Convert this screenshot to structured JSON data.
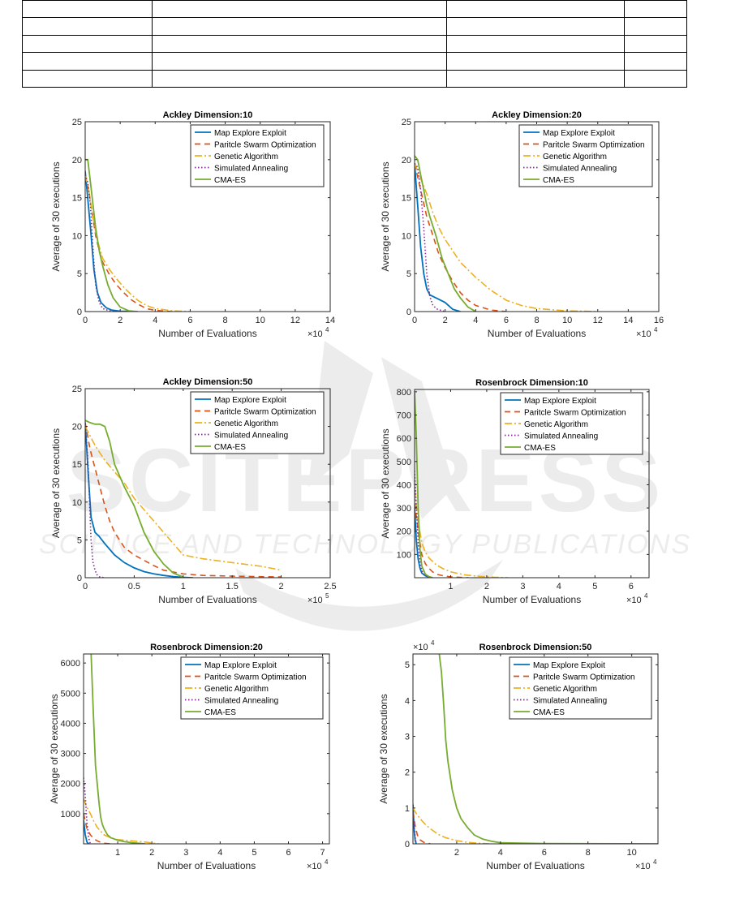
{
  "watermark": {
    "main": "SCITEPRESS",
    "sub": "SCIENCE AND TECHNOLOGY PUBLICATIONS"
  },
  "table": {
    "rows": 5,
    "cols": 4
  },
  "legend": [
    "Map Explore Exploit",
    "Paritcle Swarm Optimization",
    "Genetic Algorithm",
    "Simulated Annealing",
    "CMA-ES"
  ],
  "series_colors": [
    "#0072BD",
    "#D95319",
    "#EDB120",
    "#7E2F8E",
    "#77AC30"
  ],
  "charts": [
    {
      "title": "Ackley Dimension:10",
      "xlabel": "Number of Evaluations",
      "ylabel": "Average of 30 executions",
      "xticks": [
        "0",
        "2",
        "4",
        "6",
        "8",
        "10",
        "12",
        "14"
      ],
      "yticks": [
        "0",
        "5",
        "10",
        "15",
        "20",
        "25"
      ],
      "xexp": "×10",
      "xexpsup": "4",
      "yexp": "",
      "yexpsup": ""
    },
    {
      "title": "Ackley Dimension:20",
      "xlabel": "Number of Evaluations",
      "ylabel": "Average of 30 executions",
      "xticks": [
        "0",
        "2",
        "4",
        "6",
        "8",
        "10",
        "12",
        "14",
        "16"
      ],
      "yticks": [
        "0",
        "5",
        "10",
        "15",
        "20",
        "25"
      ],
      "xexp": "×10",
      "xexpsup": "4",
      "yexp": "",
      "yexpsup": ""
    },
    {
      "title": "Ackley Dimension:50",
      "xlabel": "Number of Evaluations",
      "ylabel": "Average of 30 executions",
      "xticks": [
        "0",
        "0.5",
        "1",
        "1.5",
        "2",
        "2.5"
      ],
      "yticks": [
        "0",
        "5",
        "10",
        "15",
        "20",
        "25"
      ],
      "xexp": "×10",
      "xexpsup": "5",
      "yexp": "",
      "yexpsup": ""
    },
    {
      "title": "Rosenbrock Dimension:10",
      "xlabel": "Number of Evaluations",
      "ylabel": "Average of 30 executions",
      "xticks": [
        "1",
        "2",
        "3",
        "4",
        "5",
        "6"
      ],
      "yticks": [
        "100",
        "200",
        "300",
        "400",
        "500",
        "600",
        "700",
        "800"
      ],
      "xexp": "×10",
      "xexpsup": "4",
      "yexp": "",
      "yexpsup": ""
    },
    {
      "title": "Rosenbrock Dimension:20",
      "xlabel": "Number of Evaluations",
      "ylabel": "Average of 30 executions",
      "xticks": [
        "1",
        "2",
        "3",
        "4",
        "5",
        "6",
        "7"
      ],
      "yticks": [
        "1000",
        "2000",
        "3000",
        "4000",
        "5000",
        "6000"
      ],
      "xexp": "×10",
      "xexpsup": "4",
      "yexp": "",
      "yexpsup": ""
    },
    {
      "title": "Rosenbrock Dimension:50",
      "xlabel": "Number of Evaluations",
      "ylabel": "Average of 30 executions",
      "xticks": [
        "2",
        "4",
        "6",
        "8",
        "10"
      ],
      "yticks": [
        "0",
        "1",
        "2",
        "3",
        "4",
        "5"
      ],
      "xexp": "×10",
      "xexpsup": "4",
      "yexp": "×10",
      "yexpsup": "4"
    }
  ],
  "chart_data": [
    {
      "type": "line",
      "title": "Ackley Dimension:10",
      "xlabel": "Number of Evaluations",
      "ylabel": "Average of 30 executions",
      "xlim": [
        0,
        140000
      ],
      "ylim": [
        0,
        25
      ],
      "grid": false,
      "legend_position": "top-right",
      "series": [
        {
          "name": "Map Explore Exploit",
          "x": [
            0,
            1000,
            3000,
            5000,
            7000,
            9000,
            12000,
            15000,
            20000,
            30000
          ],
          "y": [
            18.5,
            16,
            11,
            5.5,
            2.5,
            1.2,
            0.5,
            0.2,
            0.05,
            0
          ]
        },
        {
          "name": "Paritcle Swarm Optimization",
          "x": [
            0,
            2000,
            4000,
            6000,
            8000,
            10000,
            14000,
            18000,
            22000,
            26000,
            30000,
            35000,
            40000,
            50000
          ],
          "y": [
            18,
            16,
            13,
            10,
            8,
            6.5,
            4.8,
            3.5,
            2.5,
            1.6,
            1,
            0.4,
            0.15,
            0
          ]
        },
        {
          "name": "Genetic Algorithm",
          "x": [
            0,
            2000,
            4000,
            6000,
            8000,
            10000,
            14000,
            18000,
            22000,
            26000,
            30000,
            35000,
            40000,
            50000,
            60000
          ],
          "y": [
            18,
            16,
            13,
            10.5,
            8.5,
            7,
            5.5,
            4.3,
            3.2,
            2.3,
            1.5,
            0.8,
            0.4,
            0.1,
            0
          ]
        },
        {
          "name": "Simulated Annealing",
          "x": [
            0,
            1500,
            3000,
            4500,
            6000,
            8000,
            10000,
            14000,
            20000
          ],
          "y": [
            18,
            17,
            14,
            8,
            3.5,
            1.2,
            0.4,
            0.1,
            0
          ]
        },
        {
          "name": "CMA-ES",
          "x": [
            0,
            1500,
            3000,
            4500,
            6000,
            8000,
            10000,
            13000,
            16000,
            20000,
            25000,
            30000
          ],
          "y": [
            20,
            20,
            17,
            14,
            11,
            8,
            6,
            3.5,
            1.8,
            0.6,
            0.1,
            0
          ]
        }
      ]
    },
    {
      "type": "line",
      "title": "Ackley Dimension:20",
      "xlabel": "Number of Evaluations",
      "ylabel": "Average of 30 executions",
      "xlim": [
        0,
        160000
      ],
      "ylim": [
        0,
        25
      ],
      "grid": false,
      "legend_position": "top-right",
      "series": [
        {
          "name": "Map Explore Exploit",
          "x": [
            0,
            2000,
            4000,
            6000,
            8000,
            10000,
            12000,
            15000,
            20000,
            25000,
            30000
          ],
          "y": [
            19.5,
            14,
            8.5,
            5,
            3,
            2.2,
            2,
            1.7,
            1.2,
            0.3,
            0
          ]
        },
        {
          "name": "Paritcle Swarm Optimization",
          "x": [
            0,
            4000,
            8000,
            12000,
            16000,
            20000,
            25000,
            30000,
            35000,
            40000,
            50000,
            60000
          ],
          "y": [
            19.5,
            16,
            12.5,
            10,
            7.5,
            5.8,
            4,
            2.5,
            1.5,
            0.8,
            0.2,
            0
          ]
        },
        {
          "name": "Genetic Algorithm",
          "x": [
            0,
            4000,
            8000,
            12000,
            16000,
            20000,
            25000,
            30000,
            40000,
            50000,
            60000,
            70000,
            80000,
            100000,
            120000
          ],
          "y": [
            19.5,
            17.5,
            15.5,
            13,
            11,
            9.5,
            8,
            6.5,
            4.5,
            2.8,
            1.5,
            0.8,
            0.4,
            0.1,
            0
          ]
        },
        {
          "name": "Simulated Annealing",
          "x": [
            0,
            2000,
            4000,
            6000,
            8000,
            10000,
            12000,
            15000,
            20000
          ],
          "y": [
            19.5,
            19,
            16,
            11,
            5,
            2,
            0.8,
            0.3,
            0
          ]
        },
        {
          "name": "CMA-ES",
          "x": [
            0,
            2000,
            4000,
            6000,
            8000,
            10000,
            14000,
            18000,
            22000,
            26000,
            30000,
            35000,
            40000
          ],
          "y": [
            20.5,
            20,
            18,
            16,
            14,
            12.5,
            10,
            7,
            5,
            3,
            1.8,
            0.6,
            0
          ]
        }
      ]
    },
    {
      "type": "line",
      "title": "Ackley Dimension:50",
      "xlabel": "Number of Evaluations",
      "ylabel": "Average of 30 executions",
      "xlim": [
        0,
        250000
      ],
      "ylim": [
        0,
        25
      ],
      "grid": false,
      "legend_position": "top-right",
      "series": [
        {
          "name": "Map Explore Exploit",
          "x": [
            0,
            3000,
            6000,
            10000,
            14000,
            20000,
            30000,
            40000,
            50000,
            60000,
            70000,
            80000,
            90000,
            100000,
            110000
          ],
          "y": [
            20.5,
            14,
            8,
            6,
            5.5,
            4.5,
            3,
            2,
            1.3,
            0.8,
            0.5,
            0.3,
            0.15,
            0.05,
            0
          ]
        },
        {
          "name": "Paritcle Swarm Optimization",
          "x": [
            0,
            5000,
            10000,
            15000,
            20000,
            25000,
            30000,
            40000,
            50000,
            60000,
            70000,
            80000,
            100000,
            120000,
            150000,
            200000
          ],
          "y": [
            20.5,
            17,
            14.5,
            12,
            9.5,
            7.5,
            6,
            4,
            3,
            2.3,
            1.6,
            1,
            0.5,
            0.3,
            0.2,
            0.1
          ]
        },
        {
          "name": "Genetic Algorithm",
          "x": [
            0,
            10000,
            20000,
            30000,
            40000,
            50000,
            60000,
            70000,
            80000,
            90000,
            100000,
            120000,
            150000,
            180000,
            200000
          ],
          "y": [
            20,
            17.5,
            15.5,
            14,
            12.5,
            10.5,
            9,
            7.5,
            6,
            4.5,
            3,
            2.5,
            2,
            1.5,
            1
          ]
        },
        {
          "name": "Simulated Annealing",
          "x": [
            0,
            3000,
            6000,
            8000,
            10000,
            12000,
            15000,
            20000
          ],
          "y": [
            20.5,
            15,
            5,
            2,
            1,
            0.4,
            0.1,
            0
          ]
        },
        {
          "name": "CMA-ES",
          "x": [
            0,
            5000,
            10000,
            15000,
            20000,
            25000,
            30000,
            40000,
            50000,
            60000,
            70000,
            80000,
            90000,
            100000
          ],
          "y": [
            20.8,
            20.5,
            20.3,
            20.3,
            20,
            18,
            15,
            12,
            9.5,
            6,
            3.5,
            1.8,
            0.6,
            0.1
          ]
        }
      ]
    },
    {
      "type": "line",
      "title": "Rosenbrock Dimension:10",
      "xlabel": "Number of Evaluations",
      "ylabel": "Average of 30 executions",
      "xlim": [
        0,
        65000
      ],
      "ylim": [
        0,
        810
      ],
      "grid": false,
      "legend_position": "top-right",
      "series": [
        {
          "name": "Map Explore Exploit",
          "x": [
            0,
            500,
            1000,
            1500,
            2000,
            3000,
            4000,
            5000
          ],
          "y": [
            300,
            160,
            80,
            40,
            20,
            8,
            3,
            0
          ]
        },
        {
          "name": "Paritcle Swarm Optimization",
          "x": [
            0,
            1000,
            2000,
            3000,
            4000,
            5000,
            6000,
            8000,
            10000,
            12000,
            15000
          ],
          "y": [
            320,
            200,
            100,
            60,
            40,
            25,
            15,
            8,
            4,
            2,
            0
          ]
        },
        {
          "name": "Genetic Algorithm",
          "x": [
            0,
            1000,
            2000,
            3000,
            4000,
            6000,
            8000,
            10000,
            14000,
            18000,
            22000,
            26000
          ],
          "y": [
            380,
            240,
            150,
            110,
            85,
            55,
            38,
            25,
            12,
            6,
            2,
            0
          ]
        },
        {
          "name": "Simulated Annealing",
          "x": [
            0,
            500,
            1000,
            1500,
            2000,
            3000,
            4000
          ],
          "y": [
            460,
            300,
            150,
            70,
            30,
            10,
            0
          ]
        },
        {
          "name": "CMA-ES",
          "x": [
            0,
            500,
            1000,
            1500,
            2000,
            3000,
            4000,
            5000
          ],
          "y": [
            800,
            600,
            300,
            120,
            50,
            15,
            5,
            0
          ]
        }
      ]
    },
    {
      "type": "line",
      "title": "Rosenbrock Dimension:20",
      "xlabel": "Number of Evaluations",
      "ylabel": "Average of 30 executions",
      "xlim": [
        0,
        72000
      ],
      "ylim": [
        0,
        6300
      ],
      "grid": false,
      "legend_position": "top-right",
      "series": [
        {
          "name": "Map Explore Exploit",
          "x": [
            0,
            500,
            1000,
            1500
          ],
          "y": [
            800,
            300,
            60,
            0
          ]
        },
        {
          "name": "Paritcle Swarm Optimization",
          "x": [
            0,
            1000,
            2000,
            3000,
            4000,
            5000,
            6000,
            8000
          ],
          "y": [
            1000,
            500,
            300,
            170,
            100,
            50,
            20,
            0
          ]
        },
        {
          "name": "Genetic Algorithm",
          "x": [
            0,
            1000,
            2000,
            3000,
            4000,
            5000,
            6000,
            8000,
            10000,
            14000,
            18000,
            22000
          ],
          "y": [
            1500,
            1200,
            1000,
            750,
            550,
            420,
            300,
            200,
            140,
            100,
            60,
            0
          ]
        },
        {
          "name": "Simulated Annealing",
          "x": [
            0,
            500,
            1000,
            1500,
            2000
          ],
          "y": [
            2200,
            1600,
            700,
            200,
            0
          ]
        },
        {
          "name": "CMA-ES",
          "x": [
            2200,
            2800,
            3500,
            4000,
            4500,
            5000,
            5500,
            6000,
            7000,
            8000,
            10000,
            12000,
            14000,
            18000
          ],
          "y": [
            6300,
            4500,
            2600,
            2000,
            1400,
            900,
            650,
            500,
            300,
            200,
            120,
            70,
            40,
            0
          ]
        }
      ]
    },
    {
      "type": "line",
      "title": "Rosenbrock Dimension:50",
      "xlabel": "Number of Evaluations",
      "ylabel": "Average of 30 executions",
      "xlim": [
        0,
        112000
      ],
      "ylim": [
        0,
        53000
      ],
      "grid": false,
      "legend_position": "top-right",
      "series": [
        {
          "name": "Map Explore Exploit",
          "x": [
            0,
            300,
            600,
            1000,
            1500
          ],
          "y": [
            11000,
            7000,
            3500,
            1000,
            0
          ]
        },
        {
          "name": "Paritcle Swarm Optimization",
          "x": [
            0,
            1000,
            2000,
            3000,
            5000,
            8000
          ],
          "y": [
            9000,
            5000,
            2500,
            1200,
            400,
            0
          ]
        },
        {
          "name": "Genetic Algorithm",
          "x": [
            0,
            2000,
            4000,
            6000,
            8000,
            10000,
            12000,
            15000,
            20000,
            25000,
            30000,
            35000
          ],
          "y": [
            10000,
            8000,
            6500,
            5200,
            4200,
            3300,
            2500,
            1700,
            900,
            400,
            150,
            0
          ]
        },
        {
          "name": "Simulated Annealing",
          "x": [
            0,
            400,
            800,
            1200,
            1600
          ],
          "y": [
            9000,
            6000,
            3000,
            1000,
            0
          ]
        },
        {
          "name": "CMA-ES",
          "x": [
            12000,
            13000,
            14000,
            15000,
            16000,
            18000,
            20000,
            22000,
            25000,
            28000,
            32000,
            36000,
            40000,
            60000,
            112000
          ],
          "y": [
            53000,
            48000,
            39000,
            29000,
            23000,
            15000,
            10000,
            7000,
            4500,
            2500,
            1300,
            700,
            300,
            100,
            0
          ]
        }
      ]
    }
  ]
}
